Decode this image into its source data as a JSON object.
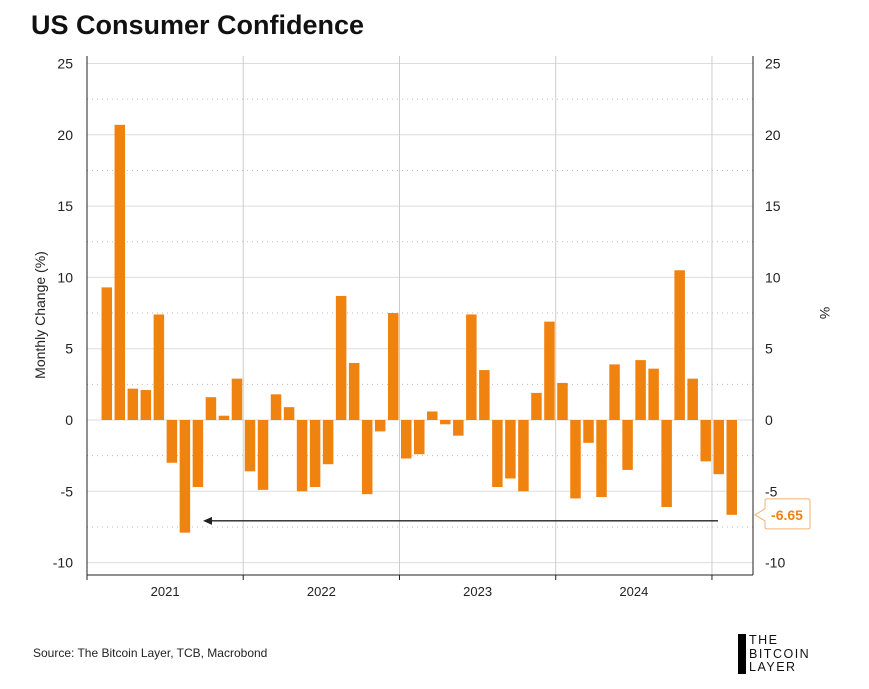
{
  "chart_data": {
    "type": "bar",
    "title": "US Consumer Confidence",
    "ylabel": "Monthly Change (%)",
    "ylabel_right": "%",
    "ylim": [
      -10,
      25
    ],
    "yticks": [
      25,
      20,
      15,
      10,
      5,
      0,
      -5,
      -10
    ],
    "year_labels": [
      "2021",
      "2022",
      "2023",
      "2024"
    ],
    "start_month": "2021-02",
    "values": [
      9.3,
      20.7,
      2.2,
      2.1,
      7.4,
      -3.0,
      -7.9,
      -4.7,
      1.6,
      0.3,
      2.9,
      -3.6,
      -4.9,
      1.8,
      0.9,
      -5.0,
      -4.7,
      -3.1,
      8.7,
      4.0,
      -5.2,
      -0.8,
      7.5,
      -2.7,
      -2.4,
      0.6,
      -0.3,
      -1.1,
      7.4,
      3.5,
      -4.7,
      -4.1,
      -5.0,
      1.9,
      6.9,
      2.6,
      -5.5,
      -1.6,
      -5.4,
      3.9,
      -3.5,
      4.2,
      3.6,
      -6.1,
      10.5,
      2.9,
      -2.9,
      -3.8,
      -6.65
    ],
    "annotation": "-6.65",
    "bar_color": "#f0820f",
    "grid": true
  },
  "source": "Source: The Bitcoin Layer, TCB, Macrobond",
  "logo": [
    "THE",
    "BITCOIN",
    "LAYER"
  ]
}
